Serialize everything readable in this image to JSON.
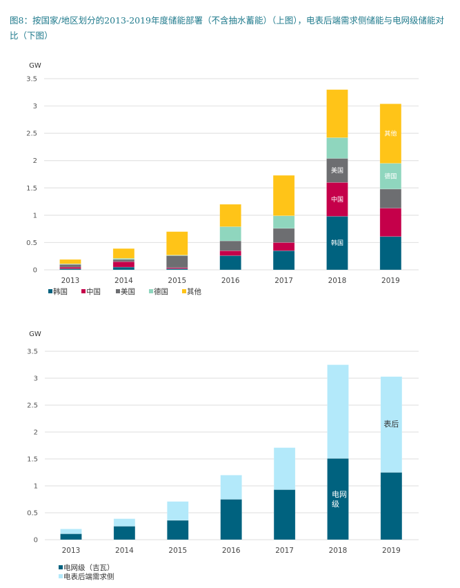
{
  "caption": "图8：按国家/地区划分的2013-2019年度储能部署（不含抽水蓄能）（上图），电表后端需求侧储能与电网级储能对比（下图）",
  "chart_data": [
    {
      "type": "bar",
      "stacked": true,
      "title": "",
      "ylabel": "GW",
      "xlabel": "",
      "ylim": [
        0,
        3.5
      ],
      "yticks": [
        0,
        0.5,
        1,
        1.5,
        2,
        2.5,
        3,
        3.5
      ],
      "ytick_labels": [
        "0",
        "0.5",
        "1",
        "1.5",
        "2",
        "2.5",
        "3",
        "3.5"
      ],
      "grid": true,
      "legend_position": "bottom-left",
      "categories": [
        "2013",
        "2014",
        "2015",
        "2016",
        "2017",
        "2018",
        "2019"
      ],
      "series": [
        {
          "name": "韩国",
          "color": "#00627f",
          "values": [
            0.02,
            0.05,
            0.02,
            0.26,
            0.35,
            0.98,
            0.61
          ]
        },
        {
          "name": "中国",
          "color": "#c5004a",
          "values": [
            0.03,
            0.1,
            0.02,
            0.09,
            0.15,
            0.62,
            0.52
          ]
        },
        {
          "name": "美国",
          "color": "#6d6e71",
          "values": [
            0.05,
            0.04,
            0.22,
            0.18,
            0.26,
            0.44,
            0.35
          ]
        },
        {
          "name": "德国",
          "color": "#8fd6be",
          "values": [
            0.01,
            0.02,
            0.01,
            0.26,
            0.23,
            0.38,
            0.47
          ]
        },
        {
          "name": "其他",
          "color": "#ffc418",
          "values": [
            0.08,
            0.18,
            0.43,
            0.41,
            0.74,
            0.88,
            1.09
          ]
        }
      ],
      "annotations": [
        {
          "category": "2018",
          "series": "韩国",
          "text": "韩国"
        },
        {
          "category": "2018",
          "series": "中国",
          "text": "中国"
        },
        {
          "category": "2018",
          "series": "美国",
          "text": "美国"
        },
        {
          "category": "2019",
          "series": "德国",
          "text": "德国"
        },
        {
          "category": "2019",
          "series": "其他",
          "text": "其他"
        }
      ]
    },
    {
      "type": "bar",
      "stacked": true,
      "title": "",
      "ylabel": "GW",
      "xlabel": "",
      "ylim": [
        0,
        3.5
      ],
      "yticks": [
        0,
        0.5,
        1,
        1.5,
        2,
        2.5,
        3,
        3.5
      ],
      "ytick_labels": [
        "0",
        "0.5",
        "1",
        "1.5",
        "2",
        "2.5",
        "3",
        "3.5"
      ],
      "grid": true,
      "legend_position": "bottom-left",
      "categories": [
        "2013",
        "2014",
        "2015",
        "2016",
        "2017",
        "2018",
        "2019"
      ],
      "series": [
        {
          "name": "电网级（吉瓦）",
          "color": "#00627f",
          "values": [
            0.11,
            0.25,
            0.36,
            0.75,
            0.93,
            1.51,
            1.25
          ]
        },
        {
          "name": "电表后端需求侧",
          "color": "#b3e9fa",
          "values": [
            0.09,
            0.14,
            0.35,
            0.45,
            0.78,
            1.74,
            1.78
          ]
        }
      ],
      "annotations": [
        {
          "category": "2018",
          "series": "电网级（吉瓦）",
          "text": "电网\n级"
        },
        {
          "category": "2019",
          "series": "电表后端需求侧",
          "text": "表后"
        }
      ]
    }
  ]
}
